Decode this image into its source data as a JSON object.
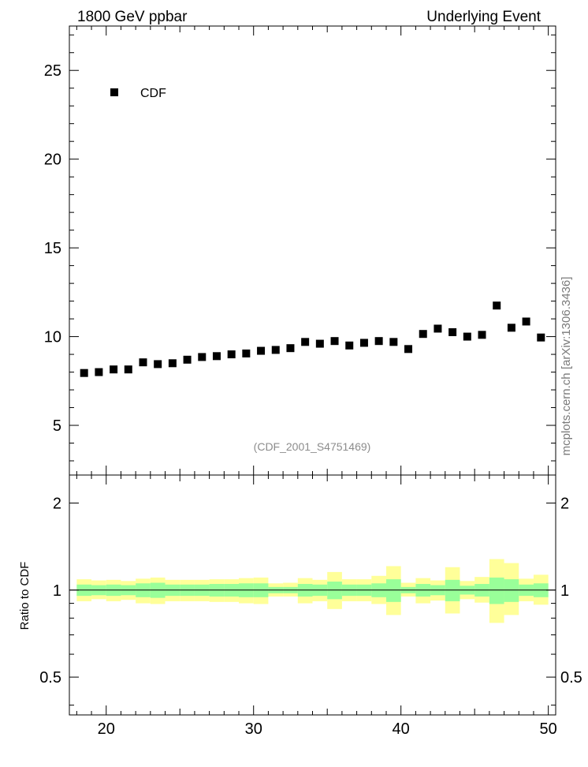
{
  "header": {
    "left_title": "1800 GeV ppbar",
    "right_title": "Underlying Event"
  },
  "watermark": "mcplots.cern.ch [arXiv:1306.3436]",
  "analysis_label": "(CDF_2001_S4751469)",
  "colors": {
    "marker": "#000000",
    "band_inner": "#99ff99",
    "band_outer": "#ffff99",
    "analysis_label": "#8c8c8c"
  },
  "chart_data": [
    {
      "type": "scatter",
      "title": "",
      "xlabel": "",
      "ylabel": "",
      "xlim": [
        17.5,
        50.5
      ],
      "ylim": [
        2.2,
        27.5
      ],
      "x_ticks": [
        20,
        30,
        40,
        50
      ],
      "y_ticks": [
        5,
        10,
        15,
        20,
        25
      ],
      "legend": {
        "position": "top-left"
      },
      "series": [
        {
          "name": "CDF",
          "marker": "square",
          "x": [
            18.5,
            19.5,
            20.5,
            21.5,
            22.5,
            23.5,
            24.5,
            25.5,
            26.5,
            27.5,
            28.5,
            29.5,
            30.5,
            31.5,
            32.5,
            33.5,
            34.5,
            35.5,
            36.5,
            37.5,
            38.5,
            39.5,
            40.5,
            41.5,
            42.5,
            43.5,
            44.5,
            45.5,
            46.5,
            47.5,
            48.5,
            49.5
          ],
          "y": [
            7.95,
            8.0,
            8.15,
            8.15,
            8.55,
            8.45,
            8.5,
            8.7,
            8.85,
            8.9,
            9.0,
            9.05,
            9.2,
            9.25,
            9.35,
            9.7,
            9.6,
            9.75,
            9.5,
            9.65,
            9.75,
            9.7,
            9.3,
            10.15,
            10.45,
            10.25,
            10.0,
            10.1,
            11.75,
            10.5,
            10.85,
            9.95
          ]
        }
      ]
    },
    {
      "type": "area",
      "title": "",
      "xlabel": "",
      "ylabel": "Ratio to CDF",
      "xlim": [
        17.5,
        50.5
      ],
      "ylim": [
        0.37,
        2.5
      ],
      "scale": "log",
      "x_ticks": [
        20,
        30,
        40,
        50
      ],
      "y_ticks": [
        0.5,
        1,
        2
      ],
      "x": [
        18.5,
        19.5,
        20.5,
        21.5,
        22.5,
        23.5,
        24.5,
        25.5,
        26.5,
        27.5,
        28.5,
        29.5,
        30.5,
        31.5,
        32.5,
        33.5,
        34.5,
        35.5,
        36.5,
        37.5,
        38.5,
        39.5,
        40.5,
        41.5,
        42.5,
        43.5,
        44.5,
        45.5,
        46.5,
        47.5,
        48.5,
        49.5
      ],
      "reference": 1,
      "bands": [
        {
          "name": "",
          "lower": [
            0.915,
            0.93,
            0.915,
            0.925,
            0.9,
            0.895,
            0.915,
            0.915,
            0.915,
            0.91,
            0.91,
            0.9,
            0.895,
            0.95,
            0.95,
            0.9,
            0.915,
            0.86,
            0.915,
            0.915,
            0.895,
            0.82,
            0.95,
            0.9,
            0.92,
            0.83,
            0.93,
            0.905,
            0.77,
            0.82,
            0.915,
            0.89
          ],
          "upper": [
            1.09,
            1.08,
            1.085,
            1.075,
            1.095,
            1.105,
            1.085,
            1.085,
            1.085,
            1.09,
            1.09,
            1.1,
            1.105,
            1.055,
            1.06,
            1.1,
            1.085,
            1.155,
            1.09,
            1.09,
            1.12,
            1.21,
            1.06,
            1.1,
            1.08,
            1.2,
            1.075,
            1.11,
            1.28,
            1.24,
            1.095,
            1.13
          ]
        },
        {
          "name": "",
          "lower": [
            0.955,
            0.96,
            0.955,
            0.96,
            0.945,
            0.94,
            0.955,
            0.955,
            0.955,
            0.95,
            0.95,
            0.945,
            0.945,
            0.975,
            0.975,
            0.95,
            0.955,
            0.93,
            0.955,
            0.955,
            0.945,
            0.91,
            0.975,
            0.95,
            0.96,
            0.915,
            0.965,
            0.95,
            0.895,
            0.91,
            0.955,
            0.945
          ],
          "upper": [
            1.045,
            1.04,
            1.045,
            1.04,
            1.055,
            1.06,
            1.045,
            1.045,
            1.045,
            1.05,
            1.05,
            1.055,
            1.055,
            1.025,
            1.025,
            1.05,
            1.045,
            1.07,
            1.045,
            1.045,
            1.055,
            1.09,
            1.025,
            1.05,
            1.04,
            1.085,
            1.035,
            1.05,
            1.105,
            1.09,
            1.045,
            1.055
          ]
        }
      ]
    }
  ]
}
